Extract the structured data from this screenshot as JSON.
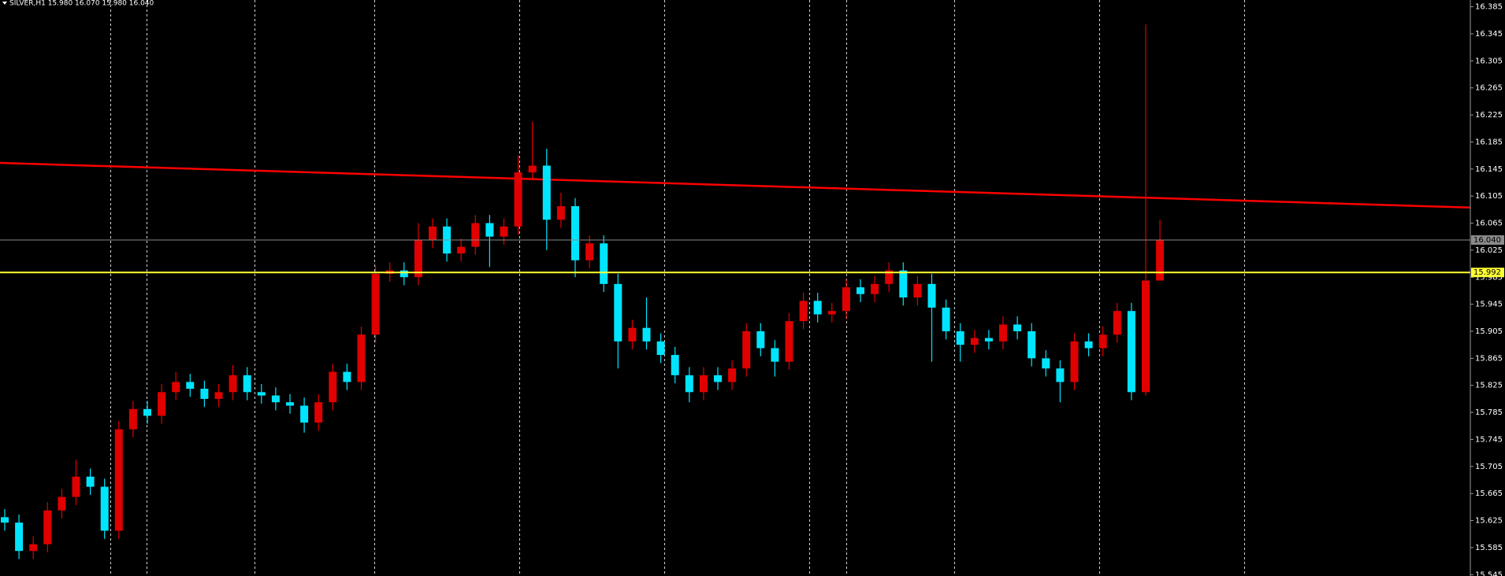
{
  "chart_data": {
    "type": "candlestick",
    "title": "SILVER,H1  15.980 16.070 15.980 16.040",
    "up_color": "#e00000",
    "down_color": "#00e5ff",
    "open": [
      15.63,
      15.622,
      15.58,
      15.59,
      15.64,
      15.66,
      15.69,
      15.675,
      15.61,
      15.76,
      15.79,
      15.78,
      15.815,
      15.83,
      15.82,
      15.805,
      15.815,
      15.84,
      15.815,
      15.81,
      15.8,
      15.795,
      15.77,
      15.8,
      15.845,
      15.83,
      15.9,
      15.99,
      15.995,
      15.985,
      16.04,
      16.06,
      16.02,
      16.03,
      16.065,
      16.045,
      16.06,
      16.14,
      16.15,
      16.07,
      16.09,
      16.01,
      16.035,
      15.975,
      15.89,
      15.91,
      15.89,
      15.87,
      15.84,
      15.815,
      15.84,
      15.83,
      15.85,
      15.905,
      15.88,
      15.86,
      15.92,
      15.95,
      15.93,
      15.935,
      15.97,
      15.96,
      15.975,
      15.995,
      15.955,
      15.975,
      15.94,
      15.905,
      15.885,
      15.895,
      15.89,
      15.915,
      15.905,
      15.865,
      15.85,
      15.83,
      15.89,
      15.88,
      15.9,
      15.935,
      15.815,
      15.98
    ],
    "high": [
      15.642,
      15.634,
      15.602,
      15.652,
      15.672,
      15.715,
      15.702,
      15.687,
      15.772,
      15.802,
      15.802,
      15.827,
      15.845,
      15.842,
      15.832,
      15.827,
      15.855,
      15.852,
      15.827,
      15.822,
      15.812,
      15.807,
      15.812,
      15.857,
      15.857,
      15.912,
      16.002,
      16.007,
      16.007,
      16.065,
      16.072,
      16.072,
      16.042,
      16.077,
      16.077,
      16.072,
      16.165,
      16.215,
      16.175,
      16.11,
      16.102,
      16.047,
      16.047,
      15.99,
      15.922,
      15.955,
      15.902,
      15.882,
      15.852,
      15.852,
      15.852,
      15.862,
      15.917,
      15.917,
      15.892,
      15.932,
      15.962,
      15.962,
      15.947,
      15.982,
      15.982,
      15.987,
      16.007,
      16.007,
      15.987,
      15.99,
      15.952,
      15.917,
      15.907,
      15.907,
      15.927,
      15.927,
      15.917,
      15.877,
      15.862,
      15.902,
      15.902,
      15.912,
      15.947,
      15.947,
      16.359,
      16.07
    ],
    "low": [
      15.61,
      15.568,
      15.568,
      15.578,
      15.628,
      15.648,
      15.663,
      15.598,
      15.598,
      15.748,
      15.768,
      15.768,
      15.803,
      15.808,
      15.793,
      15.793,
      15.803,
      15.803,
      15.798,
      15.788,
      15.783,
      15.755,
      15.758,
      15.788,
      15.818,
      15.818,
      15.888,
      15.978,
      15.973,
      15.973,
      16.028,
      16.008,
      16.008,
      16.018,
      16.0,
      16.033,
      16.048,
      16.128,
      16.025,
      16.058,
      15.985,
      15.998,
      15.963,
      15.85,
      15.878,
      15.878,
      15.858,
      15.828,
      15.8,
      15.803,
      15.818,
      15.818,
      15.838,
      15.868,
      15.838,
      15.848,
      15.908,
      15.918,
      15.918,
      15.923,
      15.948,
      15.948,
      15.963,
      15.943,
      15.943,
      15.86,
      15.893,
      15.86,
      15.873,
      15.878,
      15.878,
      15.893,
      15.853,
      15.838,
      15.8,
      15.818,
      15.868,
      15.868,
      15.888,
      15.803,
      15.81,
      15.98
    ],
    "close": [
      15.622,
      15.58,
      15.59,
      15.64,
      15.66,
      15.69,
      15.675,
      15.61,
      15.76,
      15.79,
      15.78,
      15.815,
      15.83,
      15.82,
      15.805,
      15.815,
      15.84,
      15.815,
      15.81,
      15.8,
      15.795,
      15.77,
      15.8,
      15.845,
      15.83,
      15.9,
      15.99,
      15.995,
      15.985,
      16.04,
      16.06,
      16.02,
      16.03,
      16.065,
      16.045,
      16.06,
      16.14,
      16.15,
      16.07,
      16.09,
      16.01,
      16.035,
      15.975,
      15.89,
      15.91,
      15.89,
      15.87,
      15.84,
      15.815,
      15.84,
      15.83,
      15.85,
      15.905,
      15.88,
      15.86,
      15.92,
      15.95,
      15.93,
      15.935,
      15.97,
      15.96,
      15.975,
      15.995,
      15.955,
      15.975,
      15.94,
      15.905,
      15.885,
      15.895,
      15.89,
      15.915,
      15.905,
      15.865,
      15.85,
      15.83,
      15.89,
      15.88,
      15.9,
      15.935,
      15.815,
      15.98,
      16.04
    ],
    "ylim": [
      15.543,
      16.395
    ],
    "yticks": [
      16.385,
      16.345,
      16.305,
      16.265,
      16.225,
      16.185,
      16.145,
      16.105,
      16.065,
      16.025,
      15.985,
      15.945,
      15.905,
      15.865,
      15.825,
      15.785,
      15.745,
      15.705,
      15.665,
      15.625,
      15.585,
      15.545
    ],
    "levels": [
      {
        "value": 16.04,
        "label": "16.040",
        "color": "#8a8a8a"
      },
      {
        "value": 15.992,
        "label": "15.992",
        "color": "#ffff33"
      }
    ],
    "trendline": {
      "start": 16.154,
      "end": 16.088,
      "color": "#ff0000"
    }
  }
}
